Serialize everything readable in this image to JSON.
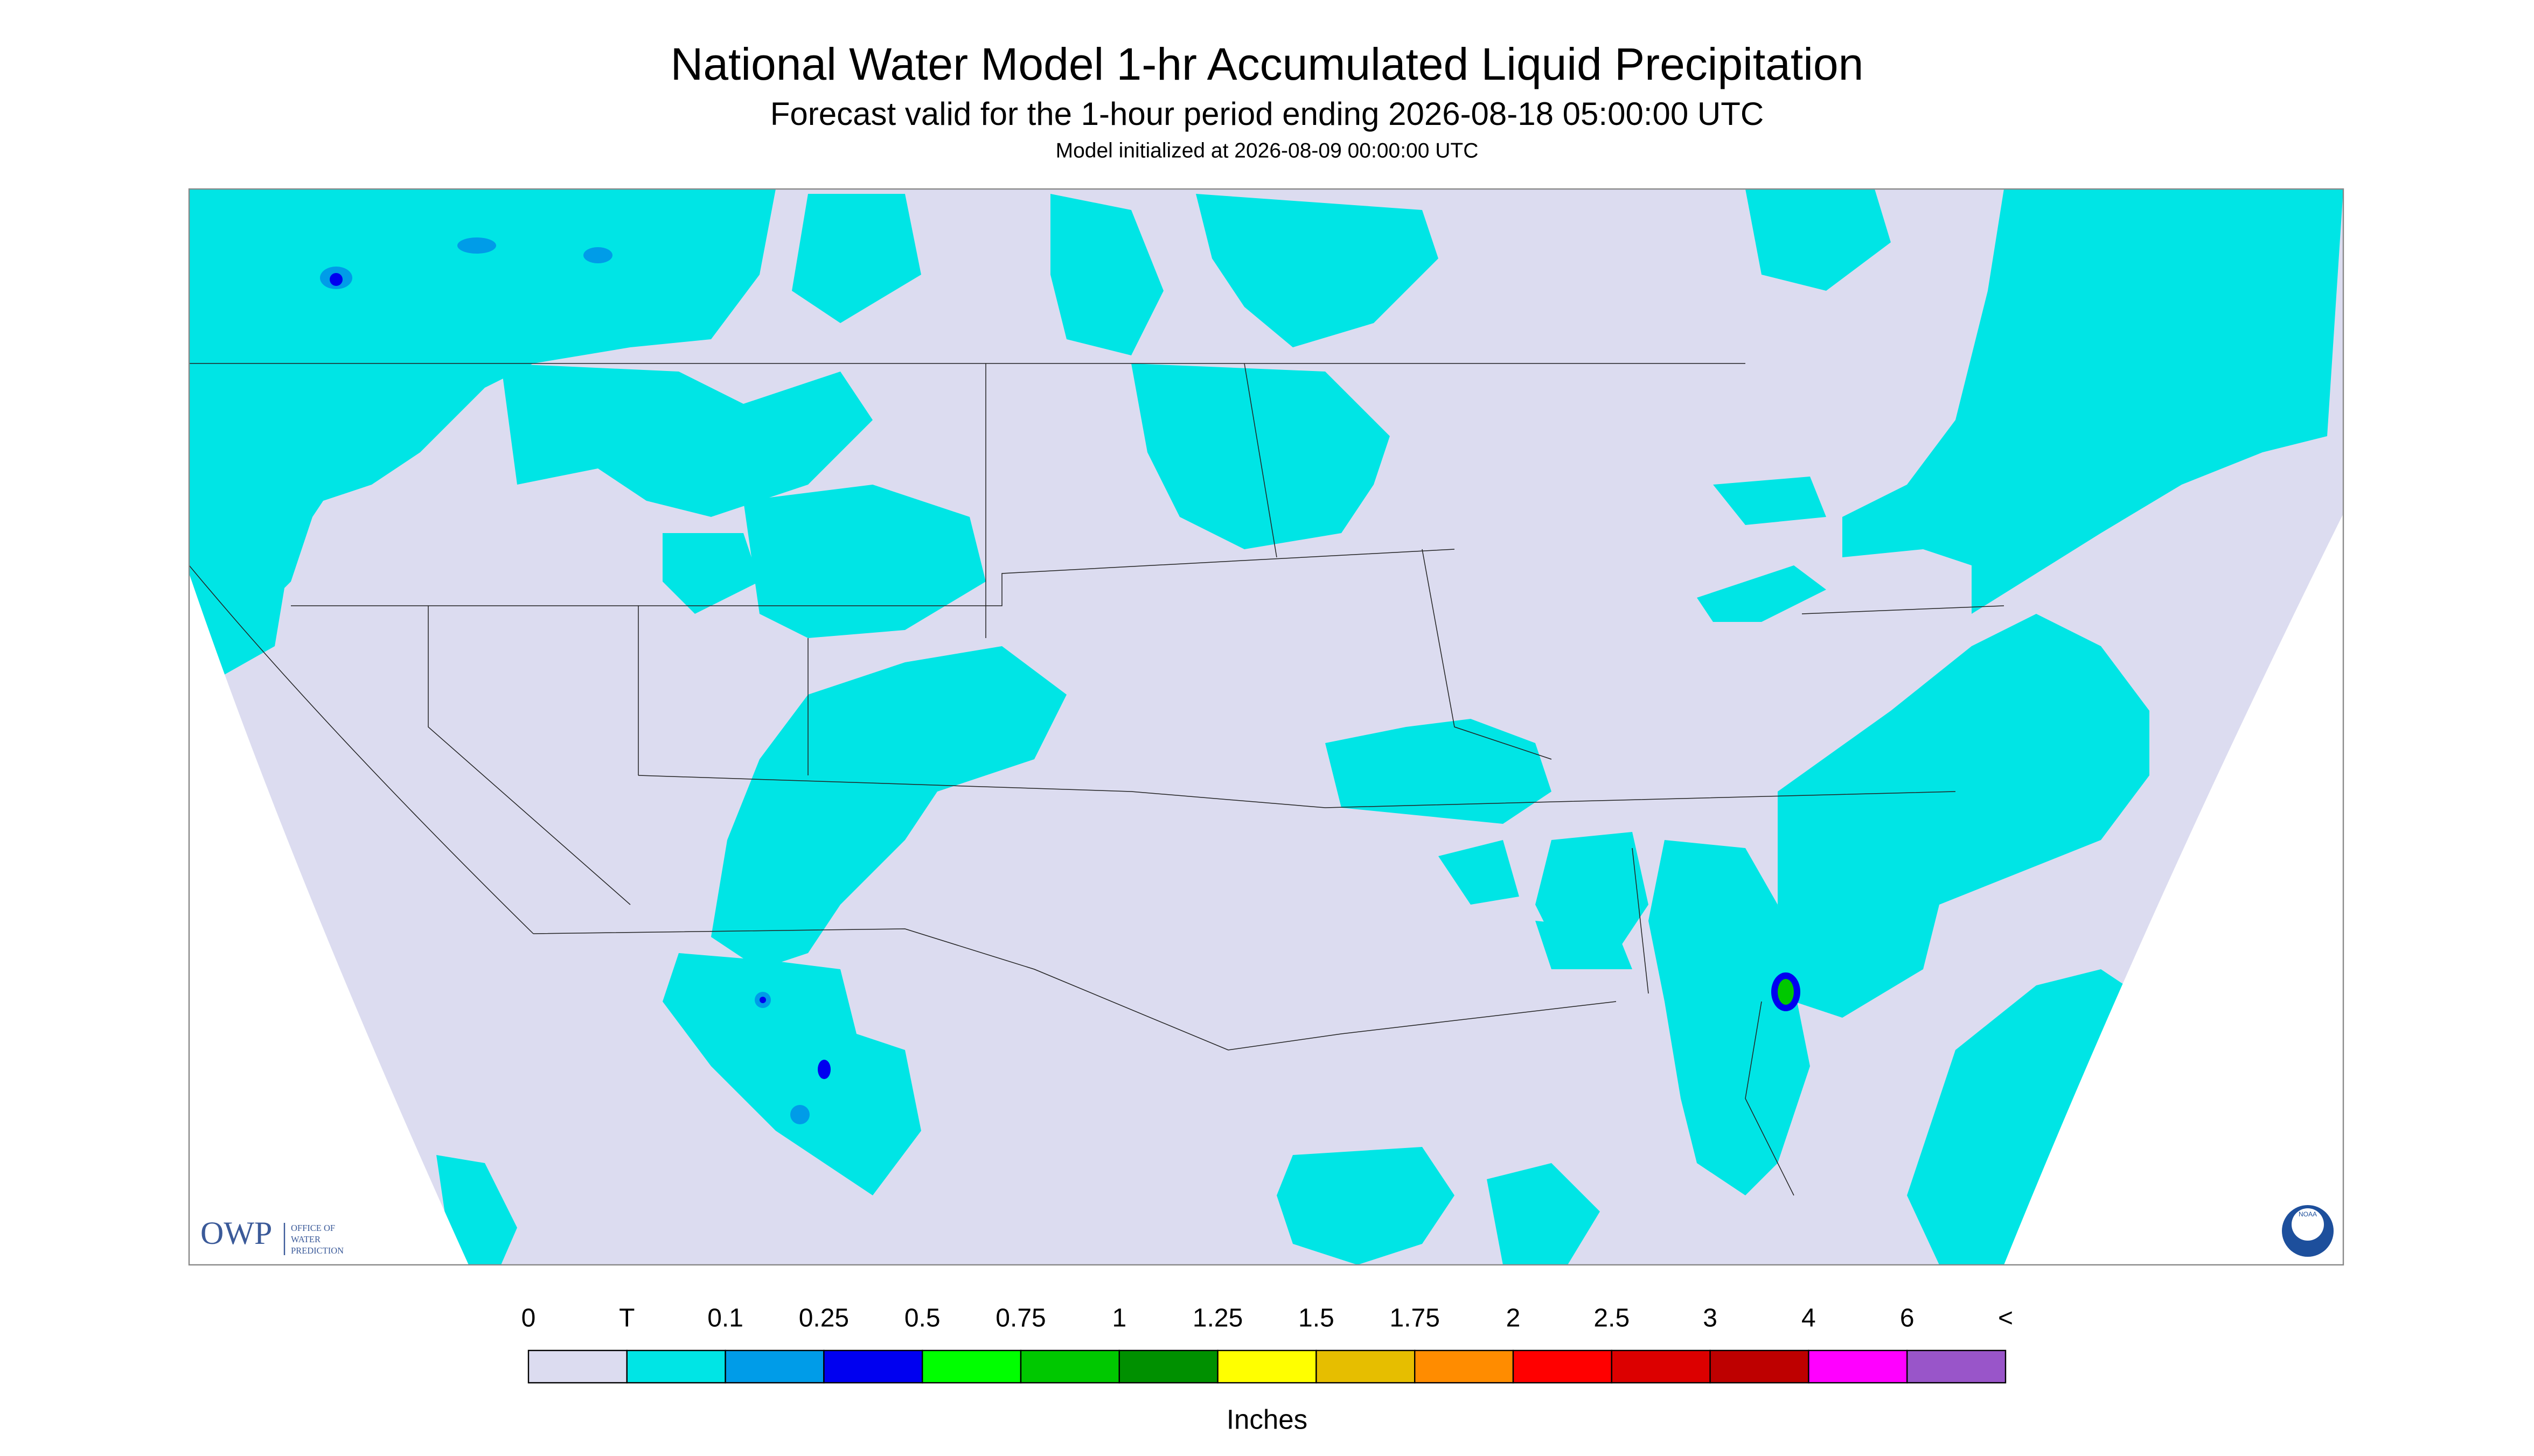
{
  "header": {
    "title": "National Water Model 1-hr Accumulated Liquid Precipitation",
    "subtitle": "Forecast valid for the 1-hour period ending 2026-08-18 05:00:00 UTC",
    "note": "Model initialized at 2026-08-09 00:00:00 UTC"
  },
  "logos": {
    "owp": "OWP",
    "owp_name": [
      "OFFICE OF",
      "WATER",
      "PREDICTION"
    ],
    "noaa": "NOAA"
  },
  "legend": {
    "labels": [
      "0",
      "T",
      "0.1",
      "0.25",
      "0.5",
      "0.75",
      "1",
      "1.25",
      "1.5",
      "1.75",
      "2",
      "2.5",
      "3",
      "4",
      "6",
      "<"
    ],
    "colors": [
      "#dcdcf0",
      "#00e5e5",
      "#009ce8",
      "#0000f0",
      "#00ff00",
      "#00c800",
      "#009000",
      "#ffff00",
      "#e6be00",
      "#ff8c00",
      "#ff0000",
      "#dc0000",
      "#be0000",
      "#ff00ff",
      "#9955c9"
    ],
    "units": "Inches"
  }
}
